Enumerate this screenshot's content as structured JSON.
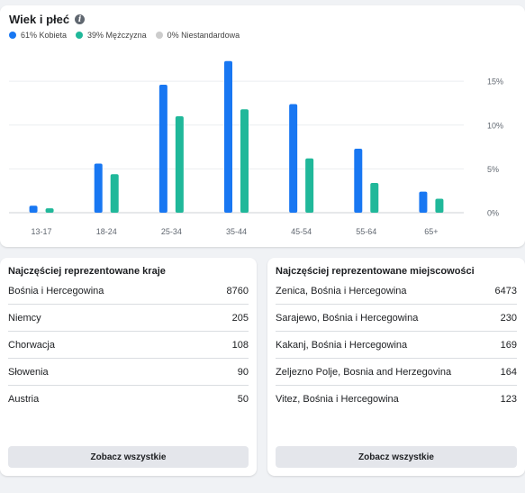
{
  "chart_section": {
    "title": "Wiek i płeć",
    "legend": [
      {
        "label": "61% Kobieta",
        "color": "#1877f2"
      },
      {
        "label": "39% Mężczyzna",
        "color": "#20b89a"
      },
      {
        "label": "0% Niestandardowa",
        "color": "#cccccc"
      }
    ]
  },
  "chart_data": {
    "type": "bar",
    "categories": [
      "13-17",
      "18-24",
      "25-34",
      "35-44",
      "45-54",
      "55-64",
      "65+"
    ],
    "series": [
      {
        "name": "Kobieta",
        "color": "#1877f2",
        "values": [
          0.8,
          5.6,
          14.6,
          17.3,
          12.4,
          7.3,
          2.4
        ]
      },
      {
        "name": "Mężczyzna",
        "color": "#20b89a",
        "values": [
          0.5,
          4.4,
          11.0,
          11.8,
          6.2,
          3.4,
          1.6
        ]
      }
    ],
    "yticks": [
      "0%",
      "5%",
      "10%",
      "15%"
    ],
    "ylim": [
      0,
      18
    ],
    "grid": true
  },
  "countries": {
    "title": "Najczęściej reprezentowane kraje",
    "rows": [
      {
        "name": "Bośnia i Hercegowina",
        "value": "8760"
      },
      {
        "name": "Niemcy",
        "value": "205"
      },
      {
        "name": "Chorwacja",
        "value": "108"
      },
      {
        "name": "Słowenia",
        "value": "90"
      },
      {
        "name": "Austria",
        "value": "50"
      }
    ],
    "button": "Zobacz wszystkie"
  },
  "cities": {
    "title": "Najczęściej reprezentowane miejscowości",
    "rows": [
      {
        "name": "Zenica, Bośnia i Hercegowina",
        "value": "6473"
      },
      {
        "name": "Sarajewo, Bośnia i Hercegowina",
        "value": "230"
      },
      {
        "name": "Kakanj, Bośnia i Hercegowina",
        "value": "169"
      },
      {
        "name": "Zeljezno Polje, Bosnia and Herzegovina",
        "value": "164"
      },
      {
        "name": "Vitez, Bośnia i Hercegowina",
        "value": "123"
      }
    ],
    "button": "Zobacz wszystkie"
  }
}
